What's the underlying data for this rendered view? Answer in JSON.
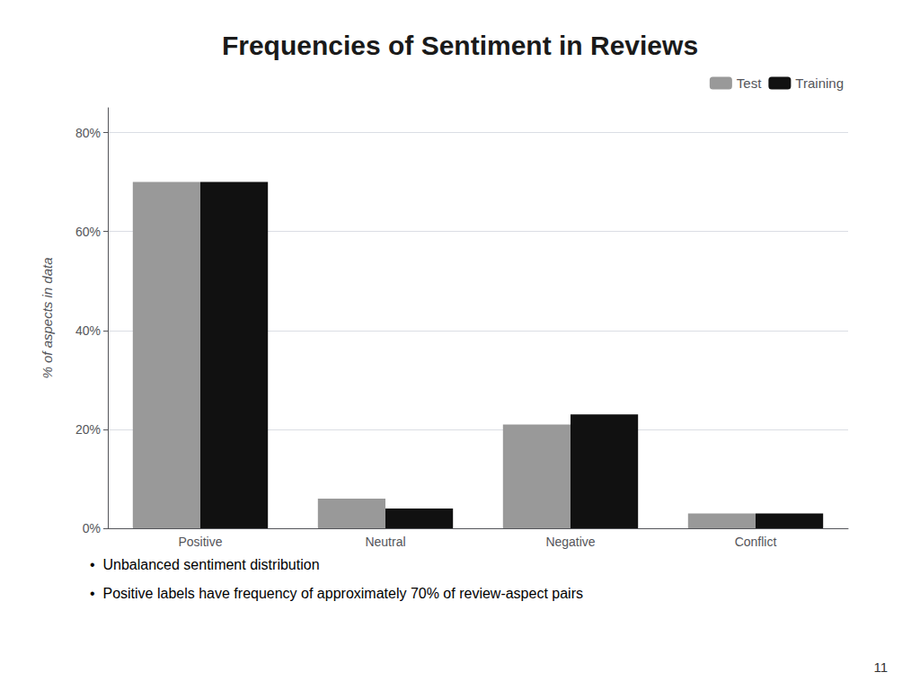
{
  "chart_data": {
    "type": "bar",
    "title": "Frequencies of Sentiment in Reviews",
    "categories": [
      "Positive",
      "Neutral",
      "Negative",
      "Conflict"
    ],
    "series": [
      {
        "name": "Test",
        "color": "#999999",
        "values": [
          0.7,
          0.06,
          0.21,
          0.03
        ]
      },
      {
        "name": "Training",
        "color": "#111111",
        "values": [
          0.7,
          0.04,
          0.23,
          0.03
        ]
      }
    ],
    "ylabel": "% of aspects in data",
    "ylim": [
      0,
      0.85
    ],
    "yticks": [
      {
        "value": 0.0,
        "label": "0%"
      },
      {
        "value": 0.2,
        "label": "20%"
      },
      {
        "value": 0.4,
        "label": "40%"
      },
      {
        "value": 0.6,
        "label": "60%"
      },
      {
        "value": 0.8,
        "label": "80%"
      }
    ],
    "grid": true,
    "legend": "upper right",
    "annotations": [
      "•  Unbalanced sentiment distribution",
      "•  Positive labels have frequency of approximately 70% of review-aspect pairs",
      "11"
    ]
  }
}
